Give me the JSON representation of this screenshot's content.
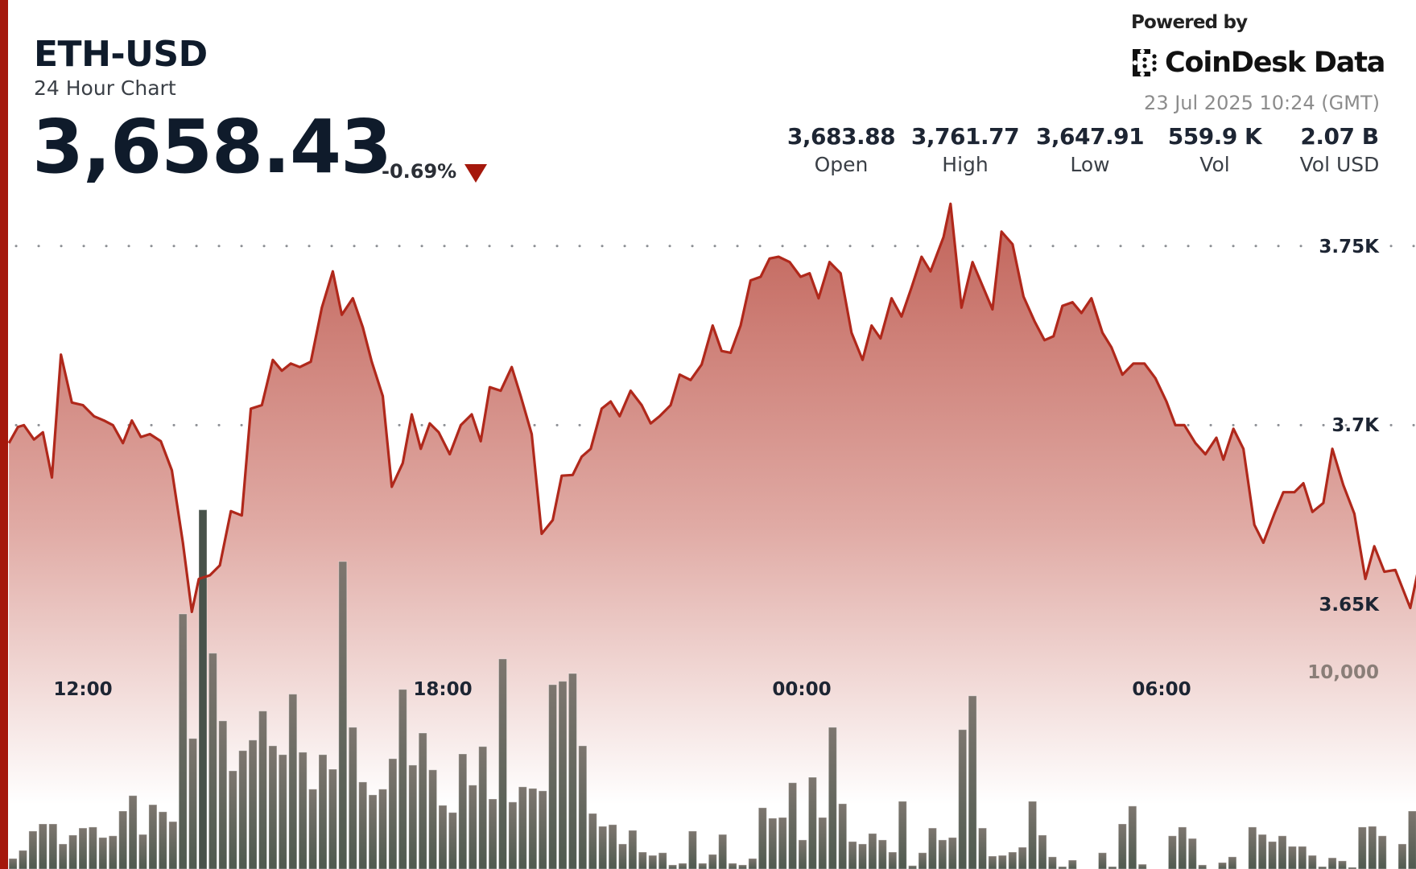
{
  "header": {
    "title": "ETH-USD",
    "subtitle": "24 Hour Chart",
    "price": "3,658.43",
    "change": "-0.69%",
    "change_direction_icon": "triangle-down-icon"
  },
  "branding": {
    "powered_by": "Powered by",
    "logo_text": "CoinDesk Data",
    "timestamp": "23 Jul 2025 10:24 (GMT)"
  },
  "stats": [
    {
      "value": "3,683.88",
      "label": "Open"
    },
    {
      "value": "3,761.77",
      "label": "High"
    },
    {
      "value": "3,647.91",
      "label": "Low"
    },
    {
      "value": "559.9 K",
      "label": "Vol"
    },
    {
      "value": "2.07 B",
      "label": "Vol USD"
    }
  ],
  "colors": {
    "accent": "#a5180c",
    "line": "#b0281b",
    "area_top": "#bf5e54",
    "bar": "#666a61",
    "bar_highlight": "#48524a"
  },
  "chart_data": {
    "type": "area",
    "grid": true,
    "price_axis": {
      "ticks": [
        3650,
        3700,
        3750
      ],
      "tick_labels": [
        "3.65K",
        "3.7K",
        "3.75K"
      ]
    },
    "time_axis": {
      "tick_labels": [
        "12:00",
        "18:00",
        "00:00",
        "06:00"
      ]
    },
    "volume_axis": {
      "ticks": [
        10000
      ],
      "tick_labels": [
        "10,000"
      ]
    },
    "price": [
      [
        "10:46",
        3695.0
      ],
      [
        "10:55",
        3699.5
      ],
      [
        "11:01",
        3700.0
      ],
      [
        "11:11",
        3696.0
      ],
      [
        "11:20",
        3698.0
      ],
      [
        "11:29",
        3685.4
      ],
      [
        "11:38",
        3719.7
      ],
      [
        "11:49",
        3706.3
      ],
      [
        "12:00",
        3705.6
      ],
      [
        "12:11",
        3702.5
      ],
      [
        "12:21",
        3701.3
      ],
      [
        "12:30",
        3700.0
      ],
      [
        "12:40",
        3695.0
      ],
      [
        "12:49",
        3701.3
      ],
      [
        "12:58",
        3696.7
      ],
      [
        "13:07",
        3697.5
      ],
      [
        "13:18",
        3695.5
      ],
      [
        "13:29",
        3687.4
      ],
      [
        "13:40",
        3667.2
      ],
      [
        "13:49",
        3647.91
      ],
      [
        "13:56",
        3657.1
      ],
      [
        "14:07",
        3658.1
      ],
      [
        "14:17",
        3660.9
      ],
      [
        "14:28",
        3676.0
      ],
      [
        "14:39",
        3674.8
      ],
      [
        "14:48",
        3704.6
      ],
      [
        "14:59",
        3705.6
      ],
      [
        "15:10",
        3718.2
      ],
      [
        "15:19",
        3715.2
      ],
      [
        "15:28",
        3717.2
      ],
      [
        "15:37",
        3716.2
      ],
      [
        "15:48",
        3717.7
      ],
      [
        "15:59",
        3732.8
      ],
      [
        "16:10",
        3742.9
      ],
      [
        "16:19",
        3730.8
      ],
      [
        "16:30",
        3735.4
      ],
      [
        "16:40",
        3727.3
      ],
      [
        "16:49",
        3717.7
      ],
      [
        "17:00",
        3708.1
      ],
      [
        "17:09",
        3682.8
      ],
      [
        "17:20",
        3689.4
      ],
      [
        "17:29",
        3703.0
      ],
      [
        "17:38",
        3693.4
      ],
      [
        "17:47",
        3700.5
      ],
      [
        "17:56",
        3698.0
      ],
      [
        "18:07",
        3691.9
      ],
      [
        "18:18",
        3700.0
      ],
      [
        "18:29",
        3703.0
      ],
      [
        "18:38",
        3695.5
      ],
      [
        "18:47",
        3710.6
      ],
      [
        "18:58",
        3709.6
      ],
      [
        "19:09",
        3716.2
      ],
      [
        "19:18",
        3708.1
      ],
      [
        "19:29",
        3697.5
      ],
      [
        "19:39",
        3669.7
      ],
      [
        "19:50",
        3673.5
      ],
      [
        "19:59",
        3685.9
      ],
      [
        "20:10",
        3686.1
      ],
      [
        "20:19",
        3691.2
      ],
      [
        "20:28",
        3693.4
      ],
      [
        "20:39",
        3704.6
      ],
      [
        "20:48",
        3706.6
      ],
      [
        "20:57",
        3702.5
      ],
      [
        "21:08",
        3709.6
      ],
      [
        "21:19",
        3705.6
      ],
      [
        "21:28",
        3700.5
      ],
      [
        "21:37",
        3702.5
      ],
      [
        "21:48",
        3705.6
      ],
      [
        "21:57",
        3714.1
      ],
      [
        "22:08",
        3712.6
      ],
      [
        "22:19",
        3716.9
      ],
      [
        "22:30",
        3727.8
      ],
      [
        "22:39",
        3720.7
      ],
      [
        "22:48",
        3720.2
      ],
      [
        "22:58",
        3727.8
      ],
      [
        "23:08",
        3740.4
      ],
      [
        "23:18",
        3741.4
      ],
      [
        "23:27",
        3746.5
      ],
      [
        "23:36",
        3747.0
      ],
      [
        "23:47",
        3745.5
      ],
      [
        "23:58",
        3741.4
      ],
      [
        "00:07",
        3742.4
      ],
      [
        "00:16",
        3735.4
      ],
      [
        "00:27",
        3745.5
      ],
      [
        "00:38",
        3742.4
      ],
      [
        "00:49",
        3725.8
      ],
      [
        "01:00",
        3718.2
      ],
      [
        "01:09",
        3727.8
      ],
      [
        "01:18",
        3724.2
      ],
      [
        "01:29",
        3735.4
      ],
      [
        "01:39",
        3730.3
      ],
      [
        "01:49",
        3738.4
      ],
      [
        "01:59",
        3747.0
      ],
      [
        "02:08",
        3742.9
      ],
      [
        "02:21",
        3752.5
      ],
      [
        "02:28",
        3761.77
      ],
      [
        "02:39",
        3732.8
      ],
      [
        "02:50",
        3745.5
      ],
      [
        "03:10",
        3732.3
      ],
      [
        "03:19",
        3754.0
      ],
      [
        "03:30",
        3750.5
      ],
      [
        "03:41",
        3735.9
      ],
      [
        "03:52",
        3729.0
      ],
      [
        "04:02",
        3723.7
      ],
      [
        "04:11",
        3724.8
      ],
      [
        "04:20",
        3733.3
      ],
      [
        "04:30",
        3734.3
      ],
      [
        "04:39",
        3731.3
      ],
      [
        "04:49",
        3735.4
      ],
      [
        "05:00",
        3725.8
      ],
      [
        "05:09",
        3721.7
      ],
      [
        "05:20",
        3714.1
      ],
      [
        "05:31",
        3717.2
      ],
      [
        "05:42",
        3717.2
      ],
      [
        "05:53",
        3713.1
      ],
      [
        "06:04",
        3706.6
      ],
      [
        "06:13",
        3700.0
      ],
      [
        "06:22",
        3700.0
      ],
      [
        "06:33",
        3695.0
      ],
      [
        "06:43",
        3691.9
      ],
      [
        "06:54",
        3696.5
      ],
      [
        "07:01",
        3690.4
      ],
      [
        "07:11",
        3699.0
      ],
      [
        "07:21",
        3693.4
      ],
      [
        "07:32",
        3672.2
      ],
      [
        "07:41",
        3667.2
      ],
      [
        "07:52",
        3675.3
      ],
      [
        "08:01",
        3681.3
      ],
      [
        "08:12",
        3681.3
      ],
      [
        "08:21",
        3683.8
      ],
      [
        "08:30",
        3675.8
      ],
      [
        "08:41",
        3678.3
      ],
      [
        "08:50",
        3693.4
      ],
      [
        "09:01",
        3683.3
      ],
      [
        "09:12",
        3675.3
      ],
      [
        "09:23",
        3657.1
      ],
      [
        "09:32",
        3666.2
      ],
      [
        "09:42",
        3659.1
      ],
      [
        "09:53",
        3659.6
      ],
      [
        "10:08",
        3649.0
      ],
      [
        "10:15",
        3658.43
      ]
    ],
    "volume": {
      "highlighted_time": "14:00",
      "times": [
        "10:50",
        "11:00",
        "11:10",
        "11:20",
        "11:30",
        "11:40",
        "11:50",
        "12:00",
        "12:10",
        "12:20",
        "12:30",
        "12:40",
        "12:50",
        "13:00",
        "13:10",
        "13:20",
        "13:30",
        "13:40",
        "13:50",
        "14:00",
        "14:10",
        "14:20",
        "14:30",
        "14:40",
        "14:50",
        "15:00",
        "15:10",
        "15:20",
        "15:30",
        "15:40",
        "15:50",
        "16:00",
        "16:10",
        "16:20",
        "16:30",
        "16:40",
        "16:50",
        "17:00",
        "17:10",
        "17:20",
        "17:30",
        "17:40",
        "17:50",
        "18:00",
        "18:10",
        "18:20",
        "18:30",
        "18:40",
        "18:50",
        "19:00",
        "19:10",
        "19:20",
        "19:30",
        "19:40",
        "19:50",
        "20:00",
        "20:10",
        "20:20",
        "20:30",
        "20:40",
        "20:50",
        "21:00",
        "21:10",
        "21:20",
        "21:30",
        "21:40",
        "21:50",
        "22:00",
        "22:10",
        "22:20",
        "22:30",
        "22:40",
        "22:50",
        "23:00",
        "23:10",
        "23:20",
        "23:30",
        "23:40",
        "23:50",
        "00:00",
        "00:10",
        "00:20",
        "00:30",
        "00:40",
        "00:50",
        "01:00",
        "01:10",
        "01:20",
        "01:30",
        "01:40",
        "01:50",
        "02:00",
        "02:10",
        "02:20",
        "02:30",
        "02:40",
        "02:50",
        "03:00",
        "03:10",
        "03:20",
        "03:30",
        "03:40",
        "03:50",
        "04:00",
        "04:10",
        "04:20",
        "04:30",
        "04:40",
        "04:50",
        "05:00",
        "05:10",
        "05:20",
        "05:30",
        "05:40",
        "05:50",
        "06:00",
        "06:10",
        "06:20",
        "06:30",
        "06:40",
        "06:50",
        "07:00",
        "07:10",
        "07:20",
        "07:30",
        "07:40",
        "07:50",
        "08:00",
        "08:10",
        "08:20",
        "08:30",
        "08:40",
        "08:50",
        "09:00",
        "09:10",
        "09:20",
        "09:30",
        "09:40",
        "09:50",
        "10:00",
        "10:10",
        "10:20"
      ],
      "values": [
        2130,
        2470,
        3280,
        3580,
        3580,
        2740,
        3110,
        3410,
        3450,
        3010,
        3080,
        4120,
        4770,
        3140,
        4390,
        4090,
        3680,
        12400,
        7170,
        16770,
        10750,
        7910,
        5810,
        6660,
        7100,
        8320,
        6860,
        6490,
        9030,
        6590,
        5040,
        6490,
        5880,
        14600,
        7640,
        5340,
        4800,
        5040,
        6320,
        9230,
        6050,
        7400,
        5850,
        4360,
        4060,
        6520,
        5210,
        6830,
        4630,
        10510,
        4500,
        5140,
        5070,
        4970,
        9430,
        9570,
        9900,
        6860,
        4020,
        3480,
        3550,
        2740,
        3310,
        2400,
        2260,
        2370,
        1860,
        1930,
        3280,
        1930,
        2300,
        3140,
        1930,
        1860,
        2130,
        4260,
        3820,
        3850,
        5310,
        2910,
        5540,
        3850,
        7640,
        4430,
        2840,
        2740,
        3180,
        2910,
        2400,
        4530,
        1830,
        2370,
        3410,
        2910,
        3010,
        7540,
        8960,
        3410,
        2230,
        2260,
        2400,
        2600,
        4530,
        3110,
        2200,
        1790,
        2060,
        1520,
        1520,
        2370,
        1790,
        3580,
        4330,
        1890,
        1520,
        1520,
        3080,
        3450,
        2970,
        1860,
        1520,
        1960,
        2200,
        1520,
        3450,
        3140,
        2840,
        3080,
        2640,
        2640,
        2260,
        1790,
        2160,
        2030,
        1760,
        3450,
        3480,
        3080,
        1520,
        2740,
        4120,
        1930
      ]
    }
  }
}
